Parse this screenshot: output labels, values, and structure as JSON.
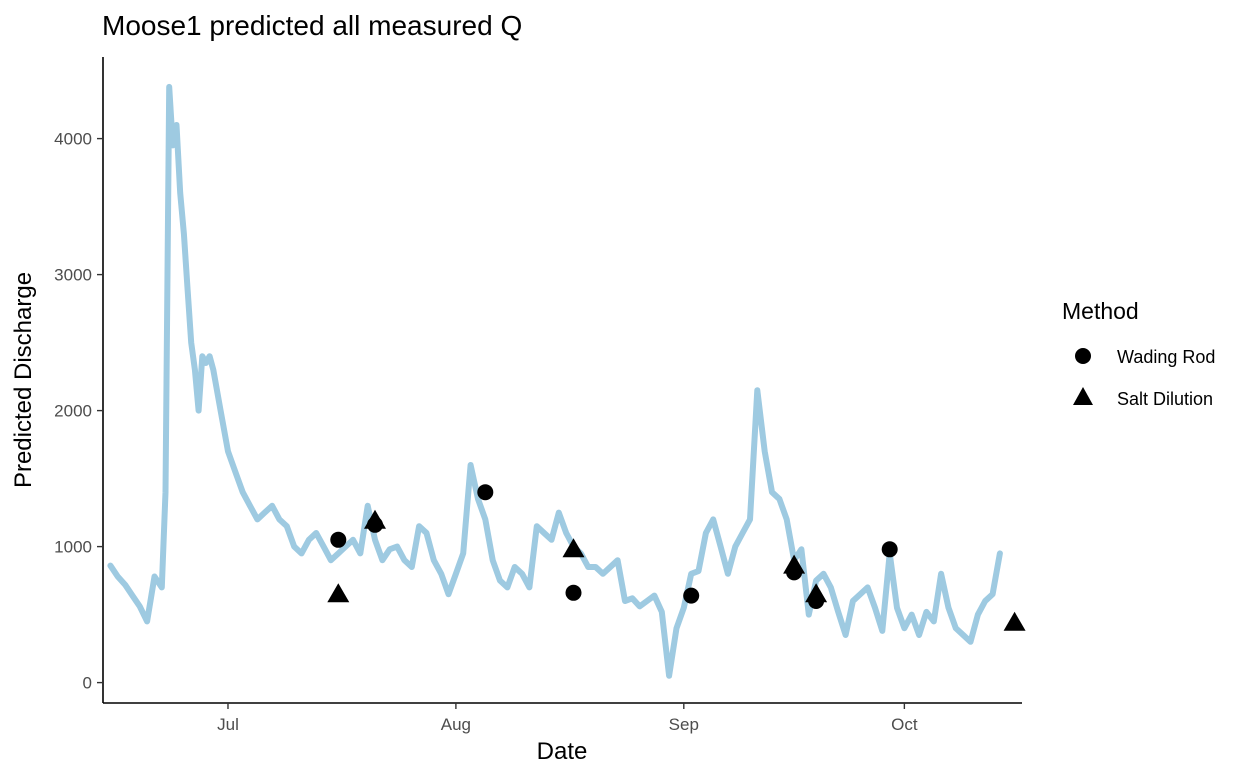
{
  "chart_data": {
    "type": "line",
    "title": "Moose1 predicted all measured Q",
    "xlabel": "Date",
    "ylabel": "Predicted Discharge",
    "xlim": [
      "2020-06-14",
      "2020-10-17"
    ],
    "ylim": [
      -150,
      4600
    ],
    "x_ticks": [
      {
        "date": "2020-07-01",
        "label": "Jul"
      },
      {
        "date": "2020-08-01",
        "label": "Aug"
      },
      {
        "date": "2020-09-01",
        "label": "Sep"
      },
      {
        "date": "2020-10-01",
        "label": "Oct"
      }
    ],
    "y_ticks": [
      0,
      1000,
      2000,
      3000,
      4000
    ],
    "grid": false,
    "legend": {
      "title": "Method",
      "position": "right",
      "entries": [
        {
          "label": "Wading Rod",
          "shape": "circle"
        },
        {
          "label": "Salt Dilution",
          "shape": "triangle"
        }
      ]
    },
    "colors": {
      "line": "#9ecae1",
      "points": "#000000"
    },
    "series": [
      {
        "type": "line",
        "x": [
          "2020-06-15",
          "2020-06-16",
          "2020-06-17",
          "2020-06-18",
          "2020-06-19",
          "2020-06-20",
          "2020-06-21",
          "2020-06-22",
          "2020-06-22T12",
          "2020-06-23",
          "2020-06-23T12",
          "2020-06-24",
          "2020-06-24T12",
          "2020-06-25",
          "2020-06-25T12",
          "2020-06-26",
          "2020-06-26T12",
          "2020-06-27",
          "2020-06-27T12",
          "2020-06-28",
          "2020-06-28T12",
          "2020-06-29",
          "2020-06-30",
          "2020-07-01",
          "2020-07-02",
          "2020-07-03",
          "2020-07-04",
          "2020-07-05",
          "2020-07-06",
          "2020-07-07",
          "2020-07-08",
          "2020-07-09",
          "2020-07-10",
          "2020-07-11",
          "2020-07-12",
          "2020-07-13",
          "2020-07-14",
          "2020-07-15",
          "2020-07-16",
          "2020-07-17",
          "2020-07-18",
          "2020-07-19",
          "2020-07-20",
          "2020-07-21",
          "2020-07-22",
          "2020-07-23",
          "2020-07-24",
          "2020-07-25",
          "2020-07-26",
          "2020-07-27",
          "2020-07-28",
          "2020-07-29",
          "2020-07-30",
          "2020-07-31",
          "2020-08-01",
          "2020-08-02",
          "2020-08-03",
          "2020-08-04",
          "2020-08-05",
          "2020-08-06",
          "2020-08-07",
          "2020-08-08",
          "2020-08-09",
          "2020-08-10",
          "2020-08-11",
          "2020-08-12",
          "2020-08-13",
          "2020-08-14",
          "2020-08-15",
          "2020-08-16",
          "2020-08-17",
          "2020-08-18",
          "2020-08-19",
          "2020-08-20",
          "2020-08-21",
          "2020-08-22",
          "2020-08-23",
          "2020-08-24",
          "2020-08-25",
          "2020-08-26",
          "2020-08-27",
          "2020-08-28",
          "2020-08-29",
          "2020-08-30",
          "2020-08-31",
          "2020-09-01",
          "2020-09-02",
          "2020-09-03",
          "2020-09-04",
          "2020-09-05",
          "2020-09-06",
          "2020-09-07",
          "2020-09-08",
          "2020-09-09",
          "2020-09-10",
          "2020-09-11",
          "2020-09-12",
          "2020-09-13",
          "2020-09-14",
          "2020-09-15",
          "2020-09-16",
          "2020-09-17",
          "2020-09-18",
          "2020-09-19",
          "2020-09-20",
          "2020-09-21",
          "2020-09-22",
          "2020-09-23",
          "2020-09-24",
          "2020-09-25",
          "2020-09-26",
          "2020-09-27",
          "2020-09-28",
          "2020-09-29",
          "2020-09-30",
          "2020-10-01",
          "2020-10-02",
          "2020-10-03",
          "2020-10-04",
          "2020-10-05",
          "2020-10-06",
          "2020-10-07",
          "2020-10-08",
          "2020-10-09",
          "2020-10-10",
          "2020-10-11",
          "2020-10-12",
          "2020-10-13",
          "2020-10-14"
        ],
        "y": [
          860,
          780,
          720,
          640,
          560,
          450,
          780,
          700,
          1400,
          4380,
          3950,
          4100,
          3600,
          3300,
          2900,
          2500,
          2300,
          2000,
          2400,
          2350,
          2400,
          2300,
          2000,
          1700,
          1550,
          1400,
          1300,
          1200,
          1250,
          1300,
          1200,
          1150,
          1000,
          950,
          1050,
          1100,
          1000,
          900,
          950,
          1000,
          1050,
          950,
          1300,
          1050,
          900,
          980,
          1000,
          900,
          850,
          1150,
          1100,
          900,
          800,
          650,
          800,
          950,
          1600,
          1350,
          1200,
          900,
          750,
          700,
          850,
          800,
          700,
          1150,
          1100,
          1050,
          1250,
          1100,
          1000,
          950,
          850,
          850,
          800,
          850,
          900,
          600,
          620,
          560,
          600,
          640,
          520,
          50,
          400,
          550,
          800,
          820,
          1100,
          1200,
          1000,
          800,
          1000,
          1100,
          1200,
          2150,
          1700,
          1400,
          1350,
          1200,
          900,
          980,
          500,
          750,
          800,
          700,
          520,
          350,
          600,
          650,
          700,
          550,
          380,
          950,
          550,
          400,
          500,
          350,
          520,
          450,
          800,
          550,
          400,
          350,
          300,
          500,
          600,
          650,
          950
        ]
      },
      {
        "type": "scatter",
        "name": "Wading Rod",
        "x": [
          "2020-07-16",
          "2020-07-21",
          "2020-08-05",
          "2020-08-17",
          "2020-09-02",
          "2020-09-16",
          "2020-09-19",
          "2020-09-29"
        ],
        "y": [
          1050,
          1160,
          1400,
          660,
          640,
          810,
          600,
          980
        ]
      },
      {
        "type": "scatter",
        "name": "Salt Dilution",
        "x": [
          "2020-07-16",
          "2020-07-21",
          "2020-08-17",
          "2020-09-16",
          "2020-09-19",
          "2020-10-16"
        ],
        "y": [
          650,
          1190,
          980,
          860,
          650,
          440
        ]
      }
    ]
  }
}
